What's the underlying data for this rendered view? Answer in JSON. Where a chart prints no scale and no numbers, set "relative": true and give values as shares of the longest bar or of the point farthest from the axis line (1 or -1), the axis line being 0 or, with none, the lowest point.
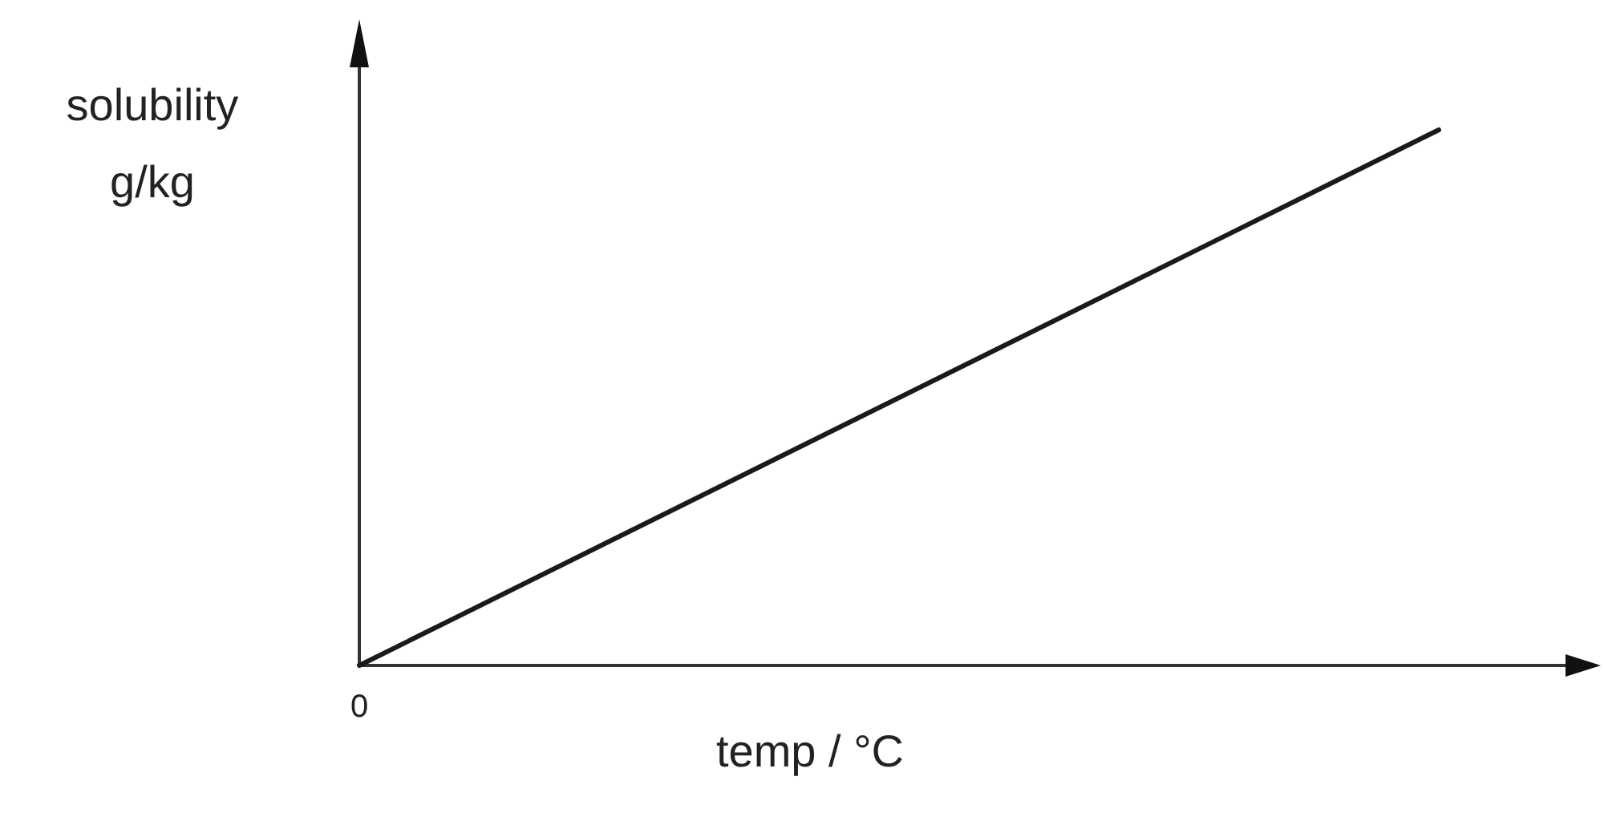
{
  "chart_data": {
    "type": "line",
    "xlabel": "temp / °C",
    "ylabel": "solubility g/kg",
    "categories": [
      null,
      null
    ],
    "values": [
      0,
      1
    ],
    "color": "#1a1a1a",
    "relative": true,
    "line_style": "solid",
    "annotations": [
      "0"
    ]
  }
}
